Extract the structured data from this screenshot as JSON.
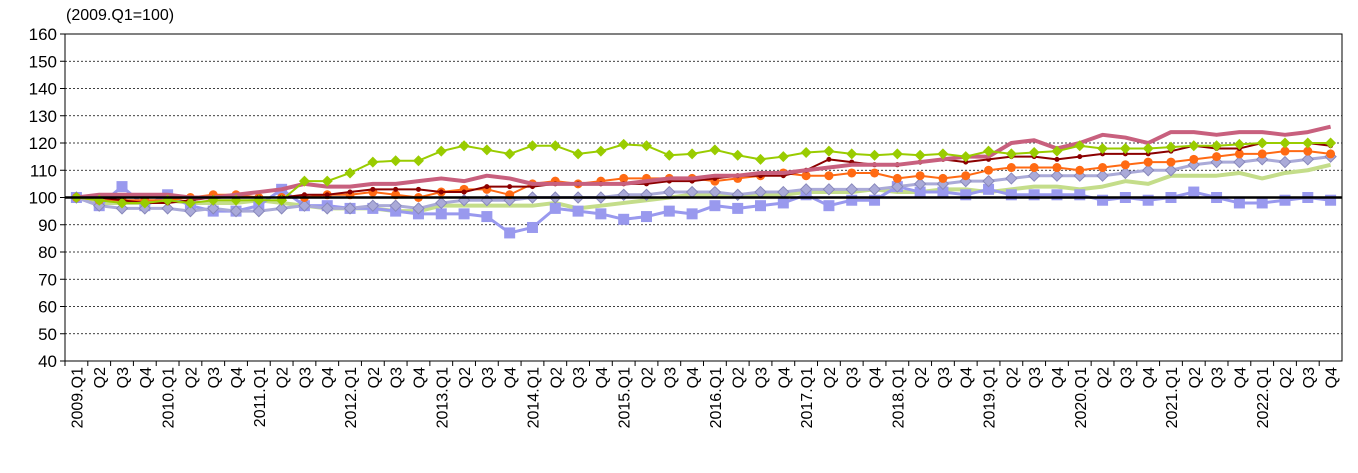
{
  "chart_data": {
    "type": "line",
    "annotation": "(2009.Q1=100)",
    "categories": [
      "2009.Q1",
      "Q2",
      "Q3",
      "Q4",
      "2010.Q1",
      "Q2",
      "Q3",
      "Q4",
      "2011.Q1",
      "Q2",
      "Q3",
      "Q4",
      "2012.Q1",
      "Q2",
      "Q3",
      "Q4",
      "2013.Q1",
      "Q2",
      "Q3",
      "Q4",
      "2014.Q1",
      "Q2",
      "Q3",
      "Q4",
      "2015.Q1",
      "Q2",
      "Q3",
      "Q4",
      "2016.Q1",
      "Q2",
      "Q3",
      "Q4",
      "2017.Q1",
      "Q2",
      "Q3",
      "Q4",
      "2018.Q1",
      "Q2",
      "Q3",
      "Q4",
      "2019.Q1",
      "Q2",
      "Q3",
      "Q4",
      "2020.Q1",
      "Q2",
      "Q3",
      "Q4",
      "2021.Q1",
      "Q2",
      "Q3",
      "Q4",
      "2022.Q1",
      "Q2",
      "Q3",
      "Q4"
    ],
    "ylim": [
      40,
      160
    ],
    "yticks": [
      40,
      50,
      60,
      70,
      80,
      90,
      100,
      110,
      120,
      130,
      140,
      150,
      160
    ],
    "grid": true,
    "reference_line": 100,
    "series": [
      {
        "color": "#c4dd8a",
        "marker": "none",
        "width": 4,
        "values": [
          100,
          98,
          98,
          98,
          99,
          98,
          98,
          98,
          99,
          98,
          97,
          96,
          96,
          96,
          95,
          95,
          97,
          97,
          97,
          97,
          97,
          98,
          96,
          97,
          98,
          99,
          100,
          101,
          101,
          101,
          101,
          101,
          102,
          102,
          102,
          103,
          102,
          102,
          103,
          103,
          102,
          103,
          104,
          104,
          103,
          104,
          106,
          105,
          108,
          108,
          108,
          109,
          107,
          109,
          110,
          112
        ]
      },
      {
        "color": "#9999ee",
        "marker": "square",
        "width": 3,
        "values": [
          100,
          97,
          104,
          97,
          101,
          97,
          95,
          95,
          97,
          103,
          97,
          97,
          96,
          96,
          95,
          94,
          94,
          94,
          93,
          87,
          89,
          96,
          95,
          94,
          92,
          93,
          95,
          94,
          97,
          96,
          97,
          98,
          101,
          97,
          99,
          99,
          104,
          102,
          102,
          101,
          103,
          101,
          101,
          101,
          101,
          99,
          100,
          99,
          100,
          102,
          100,
          98,
          98,
          99,
          100,
          99
        ]
      },
      {
        "color": "#aaaad8",
        "marker": "diamond",
        "width": 3,
        "values": [
          100,
          97,
          96,
          96,
          96,
          95,
          96,
          95,
          95,
          96,
          97,
          96,
          96,
          97,
          97,
          96,
          98,
          99,
          99,
          99,
          100,
          100,
          100,
          100,
          101,
          101,
          102,
          102,
          102,
          101,
          102,
          102,
          103,
          103,
          103,
          103,
          104,
          105,
          105,
          106,
          106,
          107,
          108,
          108,
          108,
          108,
          109,
          110,
          110,
          112,
          113,
          113,
          114,
          113,
          114,
          115
        ]
      },
      {
        "color": "#ff6a13",
        "marker": "circle",
        "width": 2,
        "values": [
          100,
          99,
          99,
          99,
          99,
          100,
          101,
          101,
          100,
          100,
          100,
          101,
          101,
          102,
          101,
          100,
          102,
          103,
          103,
          101,
          105,
          106,
          105,
          106,
          107,
          107,
          107,
          107,
          106,
          107,
          108,
          109,
          108,
          108,
          109,
          109,
          107,
          108,
          107,
          108,
          110,
          111,
          111,
          111,
          110,
          111,
          112,
          113,
          113,
          114,
          115,
          116,
          116,
          117,
          117,
          116
        ]
      },
      {
        "color": "#8b0000",
        "marker": "dot",
        "width": 2,
        "values": [
          100,
          100,
          99,
          98,
          98,
          99,
          100,
          100,
          100,
          100,
          101,
          101,
          102,
          103,
          103,
          103,
          102,
          102,
          104,
          104,
          104,
          105,
          105,
          105,
          105,
          105,
          106,
          106,
          107,
          108,
          108,
          108,
          110,
          114,
          113,
          112,
          112,
          113,
          114,
          113,
          114,
          115,
          115,
          114,
          115,
          116,
          116,
          116,
          117,
          119,
          118,
          118,
          120,
          120,
          120,
          119
        ]
      },
      {
        "color": "#c8607e",
        "marker": "none",
        "width": 4,
        "values": [
          100,
          101,
          101,
          101,
          101,
          100,
          100,
          101,
          102,
          103,
          105,
          104,
          104,
          105,
          105,
          106,
          107,
          106,
          108,
          107,
          105,
          105,
          105,
          105,
          105,
          106,
          107,
          107,
          108,
          108,
          109,
          109,
          110,
          111,
          112,
          112,
          112,
          113,
          114,
          115,
          115,
          120,
          121,
          118,
          120,
          123,
          122,
          120,
          124,
          124,
          123,
          124,
          124,
          123,
          124,
          126
        ]
      },
      {
        "color": "#99cc00",
        "marker": "diamond",
        "width": 2,
        "values": [
          100,
          99,
          98,
          98,
          99,
          98,
          99,
          99,
          99,
          99,
          106,
          106,
          109,
          113,
          113.5,
          113.5,
          117,
          119,
          117.5,
          116,
          119,
          119,
          116,
          117,
          119.5,
          119,
          115.5,
          116,
          117.5,
          115.5,
          114,
          115,
          116.5,
          117,
          116,
          115.5,
          116,
          115.5,
          116,
          115,
          117,
          116,
          116.5,
          117,
          119,
          118,
          118,
          118,
          118.5,
          119,
          119,
          119.5,
          120,
          120,
          120,
          120
        ]
      }
    ]
  }
}
